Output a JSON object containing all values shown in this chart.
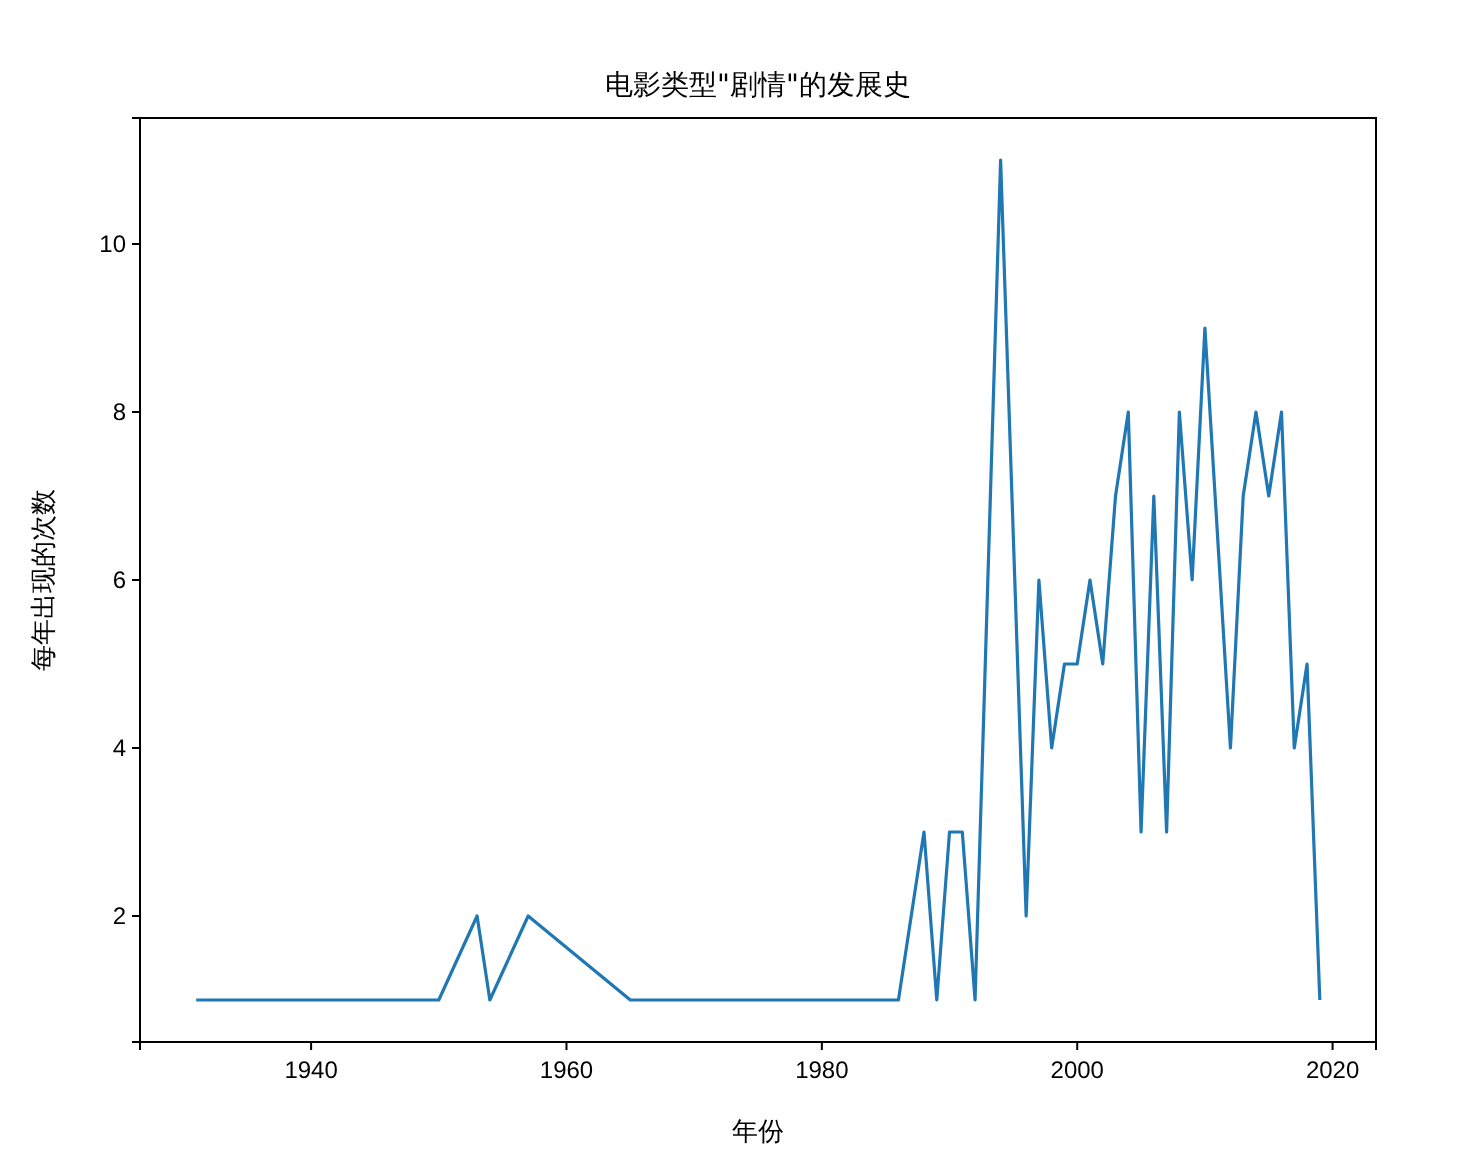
{
  "chart_data": {
    "type": "line",
    "title": "电影类型\"剧情\"的发展史",
    "xlabel": "年份",
    "ylabel": "每年出现的次数",
    "x": [
      1931,
      1950,
      1953,
      1954,
      1957,
      1965,
      1986,
      1988,
      1989,
      1990,
      1991,
      1992,
      1994,
      1996,
      1997,
      1998,
      1999,
      2000,
      2001,
      2002,
      2003,
      2004,
      2005,
      2006,
      2007,
      2008,
      2009,
      2010,
      2012,
      2013,
      2014,
      2015,
      2016,
      2017,
      2018,
      2019
    ],
    "series": [
      {
        "color": "#1f77b4",
        "values": [
          1,
          1,
          2,
          1,
          2,
          1,
          1,
          3,
          1,
          3,
          3,
          1,
          11,
          2,
          6,
          4,
          5,
          5,
          6,
          5,
          7,
          8,
          3,
          7,
          3,
          8,
          6,
          9,
          4,
          7,
          8,
          7,
          8,
          4,
          5,
          1
        ]
      }
    ],
    "xlim": [
      1926.6,
      2023.4
    ],
    "xticks": [
      1940,
      1960,
      1980,
      2000,
      2020
    ],
    "ylim": [
      0.5,
      11.5
    ],
    "yticks": [
      2,
      4,
      6,
      8,
      10
    ],
    "marker": "none",
    "line_style": "solid"
  }
}
